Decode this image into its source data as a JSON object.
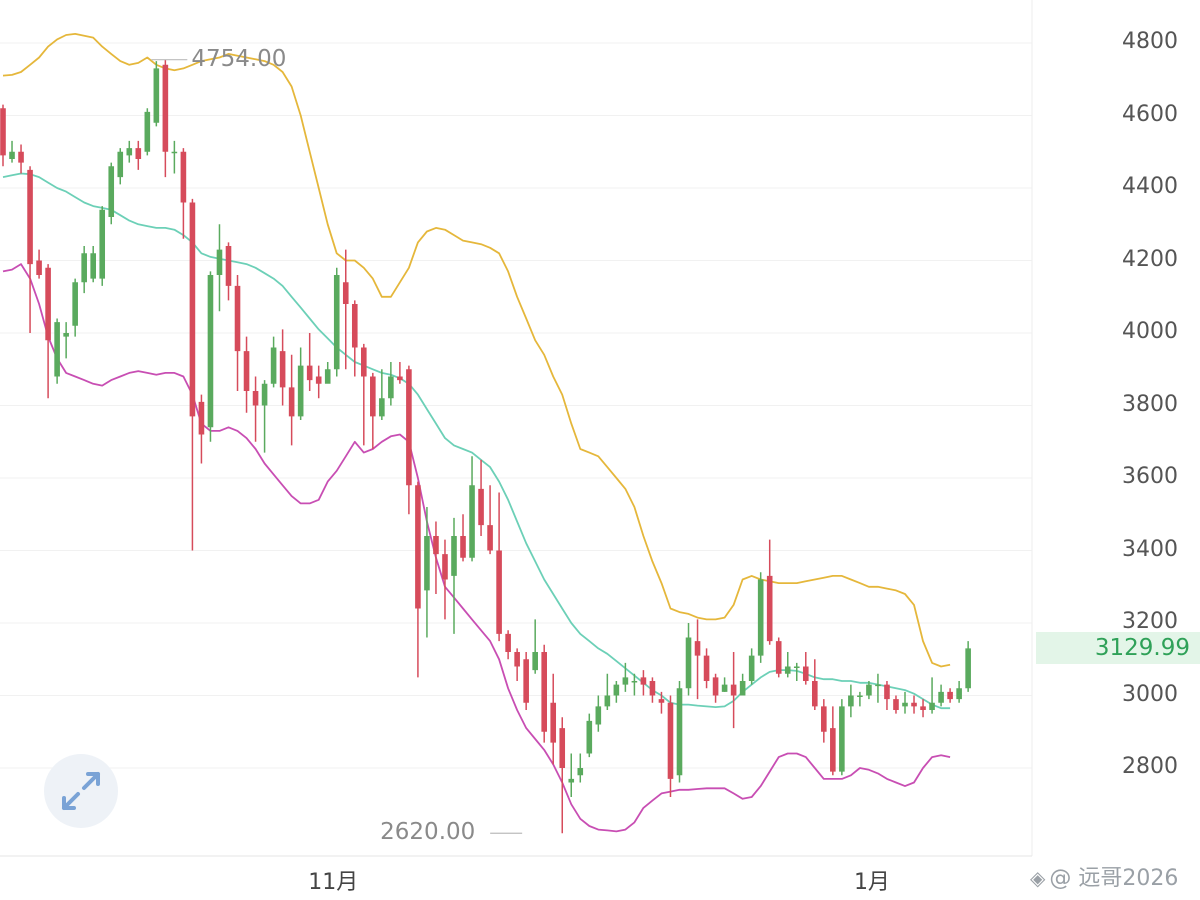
{
  "chart_data": {
    "type": "candlestick",
    "yaxis": {
      "ticks": [
        "4800",
        "4600",
        "4400",
        "4200",
        "4000",
        "3800",
        "3600",
        "3400",
        "3200",
        "3000",
        "2800"
      ],
      "ylim": [
        2560,
        4920
      ]
    },
    "xaxis": {
      "ticks": [
        {
          "label": "11月",
          "index": 36.5
        },
        {
          "label": "1月",
          "index": 97
        }
      ]
    },
    "last_price": "3129.99",
    "high_marker": {
      "label": "4754.00",
      "value": 4754,
      "index": 16
    },
    "low_marker": {
      "label": "2620.00",
      "value": 2620,
      "index": 58
    },
    "candles": [
      [
        4620,
        4490,
        4630,
        4460
      ],
      [
        4480,
        4500,
        4530,
        4470
      ],
      [
        4500,
        4470,
        4520,
        4440
      ],
      [
        4450,
        4190,
        4460,
        4000
      ],
      [
        4200,
        4160,
        4230,
        4150
      ],
      [
        4180,
        3980,
        4190,
        3820
      ],
      [
        3880,
        4030,
        4040,
        3860
      ],
      [
        3990,
        4000,
        4030,
        3930
      ],
      [
        4020,
        4140,
        4150,
        3990
      ],
      [
        4140,
        4220,
        4240,
        4110
      ],
      [
        4150,
        4220,
        4240,
        4140
      ],
      [
        4150,
        4340,
        4350,
        4130
      ],
      [
        4320,
        4460,
        4470,
        4300
      ],
      [
        4430,
        4500,
        4510,
        4410
      ],
      [
        4490,
        4510,
        4530,
        4470
      ],
      [
        4510,
        4480,
        4530,
        4450
      ],
      [
        4500,
        4610,
        4620,
        4490
      ],
      [
        4580,
        4730,
        4750,
        4570
      ],
      [
        4740,
        4500,
        4754,
        4430
      ],
      [
        4500,
        4500,
        4530,
        4440
      ],
      [
        4500,
        4360,
        4510,
        4260
      ],
      [
        4360,
        3770,
        4370,
        3400
      ],
      [
        3810,
        3720,
        3830,
        3640
      ],
      [
        3740,
        4160,
        4170,
        3700
      ],
      [
        4160,
        4230,
        4300,
        4060
      ],
      [
        4240,
        4130,
        4250,
        4090
      ],
      [
        4130,
        3950,
        4160,
        3840
      ],
      [
        3950,
        3840,
        3990,
        3780
      ],
      [
        3840,
        3800,
        3880,
        3700
      ],
      [
        3800,
        3860,
        3870,
        3670
      ],
      [
        3860,
        3960,
        3990,
        3850
      ],
      [
        3950,
        3850,
        4010,
        3800
      ],
      [
        3850,
        3770,
        3940,
        3690
      ],
      [
        3770,
        3910,
        3960,
        3760
      ],
      [
        3910,
        3870,
        4000,
        3840
      ],
      [
        3880,
        3860,
        3910,
        3820
      ],
      [
        3860,
        3900,
        3920,
        3870
      ],
      [
        3900,
        4160,
        4180,
        3880
      ],
      [
        4140,
        4080,
        4230,
        3900
      ],
      [
        4080,
        3960,
        4090,
        3880
      ],
      [
        3960,
        3880,
        3970,
        3690
      ],
      [
        3880,
        3770,
        3890,
        3680
      ],
      [
        3770,
        3820,
        3900,
        3760
      ],
      [
        3820,
        3880,
        3920,
        3800
      ],
      [
        3880,
        3870,
        3920,
        3860
      ],
      [
        3900,
        3580,
        3910,
        3500
      ],
      [
        3580,
        3240,
        3590,
        3050
      ],
      [
        3290,
        3440,
        3520,
        3160
      ],
      [
        3440,
        3390,
        3480,
        3280
      ],
      [
        3390,
        3320,
        3430,
        3210
      ],
      [
        3330,
        3440,
        3490,
        3170
      ],
      [
        3440,
        3380,
        3500,
        3370
      ],
      [
        3380,
        3580,
        3660,
        3370
      ],
      [
        3570,
        3470,
        3650,
        3440
      ],
      [
        3470,
        3400,
        3580,
        3390
      ],
      [
        3400,
        3170,
        3560,
        3150
      ],
      [
        3170,
        3120,
        3180,
        3100
      ],
      [
        3120,
        3080,
        3130,
        3040
      ],
      [
        3100,
        2980,
        3120,
        2960
      ],
      [
        3070,
        3120,
        3210,
        3060
      ],
      [
        3120,
        2900,
        3140,
        2870
      ],
      [
        2980,
        2870,
        3060,
        2810
      ],
      [
        2910,
        2800,
        2940,
        2620
      ],
      [
        2760,
        2770,
        2840,
        2720
      ],
      [
        2780,
        2800,
        2840,
        2760
      ],
      [
        2840,
        2930,
        2950,
        2830
      ],
      [
        2920,
        2970,
        3000,
        2900
      ],
      [
        2970,
        3000,
        3060,
        2960
      ],
      [
        3000,
        3030,
        3040,
        2980
      ],
      [
        3030,
        3050,
        3090,
        3010
      ],
      [
        3040,
        3040,
        3060,
        3000
      ],
      [
        3050,
        3030,
        3070,
        3000
      ],
      [
        3040,
        3000,
        3050,
        2980
      ],
      [
        2990,
        2980,
        3010,
        2950
      ],
      [
        2980,
        2770,
        3000,
        2720
      ],
      [
        2780,
        3020,
        3040,
        2760
      ],
      [
        3020,
        3160,
        3200,
        3000
      ],
      [
        3150,
        3110,
        3210,
        2990
      ],
      [
        3110,
        3040,
        3130,
        3020
      ],
      [
        3050,
        3000,
        3060,
        2980
      ],
      [
        3010,
        3030,
        3050,
        3010
      ],
      [
        3030,
        3000,
        3120,
        2910
      ],
      [
        3000,
        3040,
        3060,
        3000
      ],
      [
        3040,
        3110,
        3130,
        3030
      ],
      [
        3110,
        3320,
        3340,
        3090
      ],
      [
        3330,
        3150,
        3430,
        3140
      ],
      [
        3150,
        3060,
        3160,
        3050
      ],
      [
        3060,
        3080,
        3120,
        3050
      ],
      [
        3080,
        3080,
        3090,
        3040
      ],
      [
        3080,
        3040,
        3120,
        3030
      ],
      [
        3040,
        2970,
        3100,
        2960
      ],
      [
        2970,
        2900,
        2990,
        2870
      ],
      [
        2910,
        2790,
        2970,
        2780
      ],
      [
        2790,
        2970,
        2990,
        2780
      ],
      [
        2970,
        3000,
        3030,
        2940
      ],
      [
        3000,
        3000,
        3010,
        2970
      ],
      [
        3000,
        3030,
        3040,
        2990
      ],
      [
        3030,
        3030,
        3060,
        2980
      ],
      [
        3030,
        2990,
        3040,
        2960
      ],
      [
        2990,
        2960,
        3000,
        2950
      ],
      [
        2970,
        2980,
        3010,
        2950
      ],
      [
        2980,
        2970,
        3000,
        2950
      ],
      [
        2970,
        2960,
        2990,
        2940
      ],
      [
        2960,
        2980,
        3050,
        2950
      ],
      [
        2980,
        3010,
        3030,
        2970
      ],
      [
        3010,
        2990,
        3020,
        2980
      ],
      [
        2990,
        3020,
        3040,
        2980
      ],
      [
        3020,
        3130,
        3150,
        3010
      ]
    ],
    "series": [
      {
        "role": "upper",
        "color": "#e5b73b",
        "values": [
          4710,
          4712,
          4720,
          4740,
          4760,
          4790,
          4810,
          4822,
          4825,
          4820,
          4815,
          4790,
          4770,
          4750,
          4740,
          4745,
          4760,
          4740,
          4730,
          4725,
          4730,
          4740,
          4750,
          4755,
          4760,
          4770,
          4765,
          4760,
          4755,
          4750,
          4740,
          4720,
          4680,
          4600,
          4500,
          4400,
          4300,
          4220,
          4200,
          4200,
          4180,
          4150,
          4100,
          4100,
          4140,
          4180,
          4250,
          4280,
          4290,
          4285,
          4270,
          4255,
          4250,
          4245,
          4235,
          4220,
          4170,
          4100,
          4040,
          3980,
          3940,
          3880,
          3830,
          3750,
          3680,
          3670,
          3660,
          3630,
          3600,
          3570,
          3520,
          3440,
          3370,
          3310,
          3240,
          3230,
          3225,
          3215,
          3210,
          3210,
          3215,
          3250,
          3320,
          3330,
          3320,
          3315,
          3310,
          3310,
          3310,
          3315,
          3320,
          3325,
          3330,
          3330,
          3320,
          3310,
          3300,
          3300,
          3295,
          3290,
          3280,
          3250,
          3150,
          3090,
          3080,
          3085
        ]
      },
      {
        "role": "mid",
        "color": "#6cd0b7",
        "values": [
          4430,
          4435,
          4440,
          4438,
          4430,
          4415,
          4400,
          4390,
          4375,
          4360,
          4350,
          4345,
          4340,
          4325,
          4310,
          4300,
          4295,
          4290,
          4290,
          4285,
          4270,
          4250,
          4220,
          4210,
          4205,
          4200,
          4195,
          4190,
          4180,
          4165,
          4150,
          4130,
          4100,
          4070,
          4040,
          4010,
          3985,
          3960,
          3940,
          3920,
          3910,
          3900,
          3890,
          3885,
          3875,
          3860,
          3830,
          3790,
          3750,
          3710,
          3690,
          3680,
          3670,
          3650,
          3630,
          3590,
          3540,
          3480,
          3420,
          3370,
          3320,
          3280,
          3240,
          3200,
          3170,
          3150,
          3130,
          3115,
          3095,
          3075,
          3055,
          3035,
          3015,
          3000,
          2980,
          2975,
          2975,
          2972,
          2970,
          2968,
          2970,
          2985,
          3010,
          3030,
          3050,
          3065,
          3070,
          3070,
          3068,
          3060,
          3050,
          3045,
          3045,
          3040,
          3040,
          3035,
          3035,
          3030,
          3025,
          3020,
          3015,
          3005,
          2990,
          2975,
          2965,
          2965
        ]
      },
      {
        "role": "lower",
        "color": "#c84eb3",
        "values": [
          4170,
          4175,
          4190,
          4150,
          4080,
          3990,
          3930,
          3890,
          3880,
          3870,
          3860,
          3855,
          3870,
          3880,
          3890,
          3895,
          3890,
          3885,
          3890,
          3890,
          3880,
          3830,
          3750,
          3730,
          3730,
          3740,
          3730,
          3710,
          3680,
          3640,
          3610,
          3580,
          3550,
          3530,
          3530,
          3540,
          3590,
          3620,
          3660,
          3700,
          3670,
          3680,
          3700,
          3715,
          3720,
          3700,
          3600,
          3480,
          3380,
          3300,
          3270,
          3240,
          3210,
          3180,
          3150,
          3100,
          3020,
          2960,
          2910,
          2880,
          2850,
          2810,
          2760,
          2700,
          2660,
          2640,
          2630,
          2628,
          2625,
          2630,
          2650,
          2690,
          2710,
          2730,
          2735,
          2740,
          2740,
          2742,
          2744,
          2744,
          2744,
          2730,
          2715,
          2720,
          2750,
          2790,
          2830,
          2840,
          2840,
          2830,
          2800,
          2770,
          2770,
          2770,
          2780,
          2800,
          2795,
          2785,
          2770,
          2760,
          2750,
          2760,
          2800,
          2830,
          2835,
          2830
        ]
      }
    ]
  },
  "ui": {
    "watermark": "@ 远哥2026",
    "watermark_icon": "diamond-logo-icon",
    "expand_icon": "expand-arrows-icon",
    "up_color": "#5aaa5e",
    "down_color": "#d64b5b"
  }
}
